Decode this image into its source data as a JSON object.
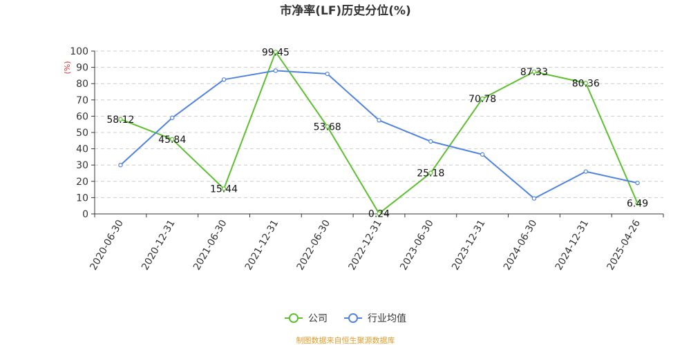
{
  "chart_data": {
    "type": "line",
    "title": "市净率(LF)历史分位(%)",
    "ylabel": "(%)",
    "ylim": [
      0,
      100
    ],
    "yticks": [
      0,
      10,
      20,
      30,
      40,
      50,
      60,
      70,
      80,
      90,
      100
    ],
    "categories": [
      "2020-06-30",
      "2020-12-31",
      "2021-06-30",
      "2021-12-31",
      "2022-06-30",
      "2022-12-31",
      "2023-06-30",
      "2023-12-31",
      "2024-06-30",
      "2024-12-31",
      "2025-04-26"
    ],
    "grid": true,
    "legend_position": "bottom-center",
    "series": [
      {
        "name": "公司",
        "color": "#5cc02e",
        "values": [
          58.12,
          45.84,
          15.44,
          99.45,
          53.68,
          0.24,
          25.18,
          70.78,
          87.33,
          80.36,
          6.49
        ],
        "labels": [
          "58.12",
          "45.84",
          "15.44",
          "99.45",
          "53.68",
          "0.24",
          "25.18",
          "70.78",
          "87.33",
          "80.36",
          "6.49"
        ]
      },
      {
        "name": "行业均值",
        "color": "#5083e0",
        "values": [
          30,
          59,
          82.5,
          88,
          86,
          57.5,
          44.5,
          36.5,
          9.5,
          26,
          19
        ]
      }
    ]
  },
  "source": {
    "text": "制图数据来自恒生聚源数据库",
    "color": "#e39b2c"
  },
  "colors": {
    "ylabel": "#e03030",
    "grid": "#cccccc",
    "axis": "#333333"
  }
}
